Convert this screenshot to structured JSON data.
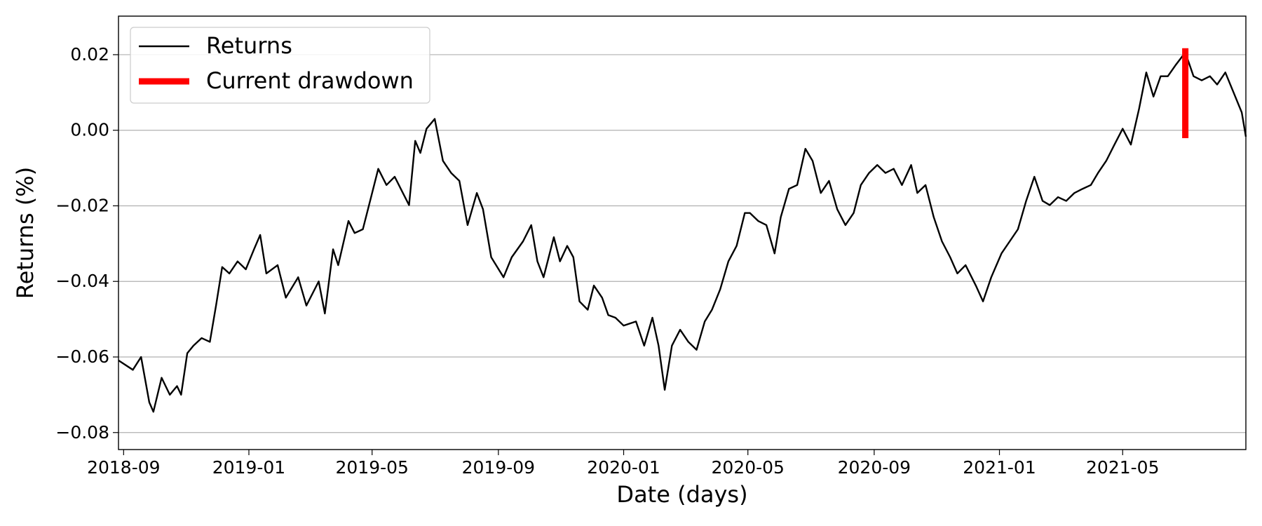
{
  "chart_data": {
    "type": "line",
    "xlabel": "Date (days)",
    "ylabel": "Returns (%)",
    "xlim": [
      "2018-08-27",
      "2021-08-29"
    ],
    "ylim": [
      -0.0845,
      0.0302
    ],
    "xticks": [
      {
        "value": "2018-09-01",
        "label": "2018-09"
      },
      {
        "value": "2019-01-01",
        "label": "2019-01"
      },
      {
        "value": "2019-05-01",
        "label": "2019-05"
      },
      {
        "value": "2019-09-01",
        "label": "2019-09"
      },
      {
        "value": "2020-01-01",
        "label": "2020-01"
      },
      {
        "value": "2020-05-01",
        "label": "2020-05"
      },
      {
        "value": "2020-09-01",
        "label": "2020-09"
      },
      {
        "value": "2021-01-01",
        "label": "2021-01"
      },
      {
        "value": "2021-05-01",
        "label": "2021-05"
      }
    ],
    "yticks": [
      {
        "value": -0.08,
        "label": "−0.08"
      },
      {
        "value": -0.06,
        "label": "−0.06"
      },
      {
        "value": -0.04,
        "label": "−0.04"
      },
      {
        "value": -0.02,
        "label": "−0.02"
      },
      {
        "value": 0,
        "label": "0.00"
      },
      0.02
    ],
    "grid": "y",
    "legend": "upper left",
    "series": [
      {
        "name": "Returns",
        "color": "#000000",
        "x": [
          "2018-08-27",
          "2018-09-10",
          "2018-09-18",
          "2018-09-26",
          "2018-09-30",
          "2018-10-08",
          "2018-10-16",
          "2018-10-23",
          "2018-10-27",
          "2018-11-02",
          "2018-11-08",
          "2018-11-16",
          "2018-11-24",
          "2018-11-30",
          "2018-12-06",
          "2018-12-13",
          "2018-12-21",
          "2018-12-29",
          "2019-01-06",
          "2019-01-12",
          "2019-01-18",
          "2019-01-29",
          "2019-02-06",
          "2019-02-18",
          "2019-02-26",
          "2019-03-10",
          "2019-03-16",
          "2019-03-24",
          "2019-03-29",
          "2019-04-08",
          "2019-04-14",
          "2019-04-22",
          "2019-04-30",
          "2019-05-07",
          "2019-05-15",
          "2019-05-23",
          "2019-05-31",
          "2019-06-06",
          "2019-06-12",
          "2019-06-17",
          "2019-06-23",
          "2019-07-01",
          "2019-07-09",
          "2019-07-17",
          "2019-07-25",
          "2019-08-02",
          "2019-08-11",
          "2019-08-17",
          "2019-08-25",
          "2019-09-06",
          "2019-09-14",
          "2019-09-25",
          "2019-10-03",
          "2019-10-09",
          "2019-10-15",
          "2019-10-25",
          "2019-10-31",
          "2019-11-07",
          "2019-11-13",
          "2019-11-19",
          "2019-11-27",
          "2019-12-03",
          "2019-12-11",
          "2019-12-17",
          "2019-12-24",
          "2020-01-01",
          "2020-01-13",
          "2020-01-21",
          "2020-01-29",
          "2020-02-04",
          "2020-02-10",
          "2020-02-17",
          "2020-02-25",
          "2020-03-04",
          "2020-03-12",
          "2020-03-20",
          "2020-03-27",
          "2020-04-04",
          "2020-04-12",
          "2020-04-20",
          "2020-04-28",
          "2020-05-03",
          "2020-05-11",
          "2020-05-19",
          "2020-05-27",
          "2020-06-02",
          "2020-06-10",
          "2020-06-18",
          "2020-06-26",
          "2020-07-03",
          "2020-07-11",
          "2020-07-19",
          "2020-07-27",
          "2020-08-04",
          "2020-08-12",
          "2020-08-19",
          "2020-08-27",
          "2020-09-04",
          "2020-09-12",
          "2020-09-20",
          "2020-09-28",
          "2020-10-07",
          "2020-10-13",
          "2020-10-21",
          "2020-10-29",
          "2020-11-06",
          "2020-11-14",
          "2020-11-21",
          "2020-11-29",
          "2020-12-09",
          "2020-12-16",
          "2020-12-24",
          "2021-01-03",
          "2021-01-11",
          "2021-01-19",
          "2021-01-27",
          "2021-02-04",
          "2021-02-12",
          "2021-02-19",
          "2021-02-27",
          "2021-03-07",
          "2021-03-15",
          "2021-03-23",
          "2021-03-31",
          "2021-04-07",
          "2021-04-15",
          "2021-04-23",
          "2021-05-01",
          "2021-05-09",
          "2021-05-17",
          "2021-05-24",
          "2021-05-31",
          "2021-06-07",
          "2021-06-14",
          "2021-06-22",
          "2021-07-01",
          "2021-07-09",
          "2021-07-17",
          "2021-07-25",
          "2021-08-01",
          "2021-08-09",
          "2021-08-17",
          "2021-08-25",
          "2021-08-29"
        ],
        "values": [
          -0.0609,
          -0.0634,
          -0.06,
          -0.072,
          -0.0745,
          -0.0655,
          -0.07,
          -0.0677,
          -0.07,
          -0.059,
          -0.057,
          -0.055,
          -0.056,
          -0.0464,
          -0.0362,
          -0.0379,
          -0.0347,
          -0.0368,
          -0.0315,
          -0.0277,
          -0.0379,
          -0.0357,
          -0.0443,
          -0.0389,
          -0.0464,
          -0.04,
          -0.0485,
          -0.0315,
          -0.0357,
          -0.024,
          -0.0272,
          -0.0262,
          -0.0177,
          -0.0102,
          -0.0145,
          -0.0123,
          -0.0166,
          -0.0198,
          -0.0028,
          -0.006,
          0.0004,
          0.003,
          -0.0081,
          -0.0113,
          -0.0134,
          -0.0251,
          -0.0166,
          -0.0209,
          -0.0336,
          -0.0389,
          -0.0336,
          -0.0294,
          -0.0251,
          -0.0347,
          -0.0389,
          -0.0283,
          -0.0347,
          -0.0306,
          -0.0336,
          -0.0453,
          -0.0475,
          -0.0411,
          -0.0443,
          -0.0489,
          -0.0496,
          -0.0517,
          -0.0506,
          -0.057,
          -0.0496,
          -0.057,
          -0.0687,
          -0.057,
          -0.0528,
          -0.056,
          -0.0581,
          -0.0506,
          -0.0475,
          -0.0421,
          -0.0347,
          -0.0306,
          -0.0219,
          -0.0219,
          -0.024,
          -0.0251,
          -0.0326,
          -0.023,
          -0.0155,
          -0.0145,
          -0.0049,
          -0.0081,
          -0.0166,
          -0.0134,
          -0.0209,
          -0.0251,
          -0.0219,
          -0.0145,
          -0.0113,
          -0.0092,
          -0.0113,
          -0.0102,
          -0.0145,
          -0.0092,
          -0.0166,
          -0.0145,
          -0.023,
          -0.0294,
          -0.0336,
          -0.0379,
          -0.0357,
          -0.0411,
          -0.0453,
          -0.0389,
          -0.0326,
          -0.0294,
          -0.0262,
          -0.0187,
          -0.0123,
          -0.0187,
          -0.0198,
          -0.0177,
          -0.0187,
          -0.0166,
          -0.0155,
          -0.0145,
          -0.0113,
          -0.0081,
          -0.0038,
          0.0004,
          -0.0038,
          0.0057,
          0.0153,
          0.0089,
          0.0143,
          0.0143,
          0.0174,
          0.0206,
          0.0143,
          0.0132,
          0.0143,
          0.0121,
          0.0153,
          0.01,
          0.0047,
          -0.0017
        ]
      },
      {
        "name": "Current drawdown",
        "color": "#ff0000",
        "x": [
          "2021-07-01",
          "2021-07-01"
        ],
        "values": [
          -0.0021,
          0.0217
        ]
      }
    ]
  }
}
